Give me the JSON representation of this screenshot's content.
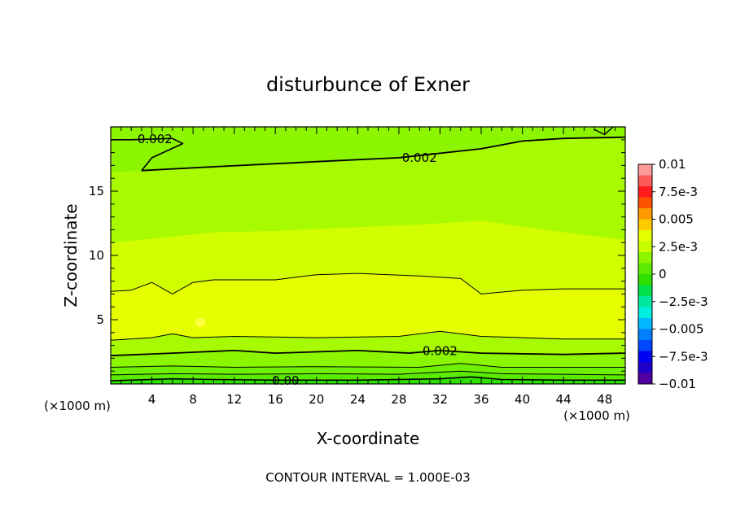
{
  "chart_data": {
    "type": "contour",
    "title": "disturbunce of Exner",
    "xlabel": "X-coordinate",
    "ylabel": "Z-coordinate",
    "x_unit_left": "(×1000 m)",
    "x_unit_right": "(×1000 m)",
    "xlim": [
      0,
      50
    ],
    "ylim": [
      0,
      20
    ],
    "x_ticks": [
      4,
      8,
      12,
      16,
      20,
      24,
      28,
      32,
      36,
      40,
      44,
      48
    ],
    "y_ticks": [
      5,
      10,
      15
    ],
    "contour_interval_text": "CONTOUR INTERVAL = 1.000E-03",
    "contour_labels": [
      "0.002",
      "0.002",
      "0.002",
      "0.00"
    ],
    "colorbar": {
      "labels": [
        "0.01",
        "7.5e-3",
        "0.005",
        "2.5e-3",
        "0",
        "−2.5e-3",
        "−0.005",
        "−7.5e-3",
        "−0.01"
      ],
      "levels": [
        {
          "value": 0.009,
          "color": "#ff9a9a"
        },
        {
          "value": 0.008,
          "color": "#ff5a5a"
        },
        {
          "value": 0.007,
          "color": "#ff1c1c"
        },
        {
          "value": 0.006,
          "color": "#ff5200"
        },
        {
          "value": 0.005,
          "color": "#ff9a00"
        },
        {
          "value": 0.004,
          "color": "#ffcc00"
        },
        {
          "value": 0.003,
          "color": "#e6ff00"
        },
        {
          "value": 0.002,
          "color": "#c8ff00"
        },
        {
          "value": 0.001,
          "color": "#8cf500"
        },
        {
          "value": 0.0005,
          "color": "#5aeb00"
        },
        {
          "value": 0,
          "color": "#2ee000"
        },
        {
          "value": -0.001,
          "color": "#00e04a"
        },
        {
          "value": -0.002,
          "color": "#00e8a0"
        },
        {
          "value": -0.003,
          "color": "#00f0e0"
        },
        {
          "value": -0.004,
          "color": "#00b8ff"
        },
        {
          "value": -0.005,
          "color": "#0080ff"
        },
        {
          "value": -0.006,
          "color": "#0046ff"
        },
        {
          "value": -0.007,
          "color": "#0000f0"
        },
        {
          "value": -0.008,
          "color": "#1e00c8"
        },
        {
          "value": -0.009,
          "color": "#5000a0"
        }
      ]
    },
    "bands": [
      {
        "color": "#2ee000",
        "upper": [
          [
            0,
            0.25
          ],
          [
            6,
            0.4
          ],
          [
            10,
            0.35
          ],
          [
            16,
            0.3
          ],
          [
            24,
            0.3
          ],
          [
            32,
            0.4
          ],
          [
            35,
            0.55
          ],
          [
            38,
            0.35
          ],
          [
            44,
            0.3
          ],
          [
            50,
            0.3
          ]
        ]
      },
      {
        "color": "#5aeb00",
        "upper": [
          [
            0,
            0.7
          ],
          [
            6,
            0.8
          ],
          [
            12,
            0.75
          ],
          [
            20,
            0.8
          ],
          [
            28,
            0.75
          ],
          [
            34,
            1.0
          ],
          [
            38,
            0.8
          ],
          [
            44,
            0.75
          ],
          [
            50,
            0.7
          ]
        ]
      },
      {
        "color": "#6ef000",
        "upper": [
          [
            0,
            1.3
          ],
          [
            6,
            1.4
          ],
          [
            12,
            1.3
          ],
          [
            20,
            1.35
          ],
          [
            30,
            1.3
          ],
          [
            34,
            1.6
          ],
          [
            38,
            1.3
          ],
          [
            50,
            1.3
          ]
        ]
      },
      {
        "color": "#8cf500",
        "upper": [
          [
            0,
            2.2
          ],
          [
            6,
            2.4
          ],
          [
            12,
            2.6
          ],
          [
            16,
            2.4
          ],
          [
            24,
            2.6
          ],
          [
            32,
            2.6
          ],
          [
            36,
            2.4
          ],
          [
            44,
            2.3
          ],
          [
            50,
            2.4
          ]
        ]
      },
      {
        "color": "#a8fa00",
        "upper": [
          [
            0,
            3.4
          ],
          [
            4,
            3.6
          ],
          [
            6,
            3.9
          ],
          [
            8,
            3.6
          ],
          [
            12,
            3.7
          ],
          [
            20,
            3.6
          ],
          [
            28,
            3.7
          ],
          [
            32,
            4.1
          ],
          [
            36,
            3.7
          ],
          [
            44,
            3.5
          ],
          [
            50,
            3.5
          ]
        ]
      },
      {
        "color": "#e6ff00",
        "upper": [
          [
            0,
            7.2
          ],
          [
            2,
            7.3
          ],
          [
            4,
            7.9
          ],
          [
            6,
            7.0
          ],
          [
            8,
            7.9
          ],
          [
            10,
            8.1
          ],
          [
            16,
            8.1
          ],
          [
            20,
            8.5
          ],
          [
            24,
            8.6
          ],
          [
            30,
            8.4
          ],
          [
            34,
            8.2
          ],
          [
            36,
            7.0
          ],
          [
            40,
            7.3
          ],
          [
            44,
            7.4
          ],
          [
            50,
            7.4
          ]
        ]
      },
      {
        "color": "#d2ff00",
        "upper": [
          [
            0,
            11.0
          ],
          [
            4,
            11.3
          ],
          [
            10,
            11.8
          ],
          [
            16,
            11.9
          ],
          [
            24,
            12.2
          ],
          [
            30,
            12.4
          ],
          [
            36,
            12.7
          ],
          [
            42,
            12.0
          ],
          [
            46,
            11.6
          ],
          [
            50,
            11.2
          ]
        ]
      },
      {
        "color": "#a8fa00",
        "upper": [
          [
            0,
            16.5
          ],
          [
            4,
            16.6
          ],
          [
            10,
            16.8
          ],
          [
            20,
            17.2
          ],
          [
            28,
            17.5
          ],
          [
            36,
            18.3
          ],
          [
            40,
            18.9
          ],
          [
            44,
            19.1
          ],
          [
            50,
            19.2
          ]
        ]
      },
      {
        "color": "#8cf500",
        "upper": [
          [
            0,
            20
          ],
          [
            50,
            20
          ]
        ]
      }
    ],
    "contours": [
      {
        "width": 1.6,
        "points": [
          [
            0,
            0.25
          ],
          [
            6,
            0.4
          ],
          [
            10,
            0.35
          ],
          [
            16,
            0.3
          ],
          [
            24,
            0.3
          ],
          [
            32,
            0.4
          ],
          [
            35,
            0.55
          ],
          [
            38,
            0.35
          ],
          [
            44,
            0.3
          ],
          [
            50,
            0.3
          ]
        ]
      },
      {
        "width": 1.0,
        "points": [
          [
            0,
            0.7
          ],
          [
            6,
            0.8
          ],
          [
            12,
            0.75
          ],
          [
            20,
            0.8
          ],
          [
            28,
            0.75
          ],
          [
            34,
            1.0
          ],
          [
            38,
            0.8
          ],
          [
            44,
            0.75
          ],
          [
            50,
            0.7
          ]
        ]
      },
      {
        "width": 1.0,
        "points": [
          [
            0,
            1.3
          ],
          [
            6,
            1.4
          ],
          [
            12,
            1.3
          ],
          [
            20,
            1.35
          ],
          [
            30,
            1.3
          ],
          [
            34,
            1.6
          ],
          [
            38,
            1.3
          ],
          [
            50,
            1.3
          ]
        ]
      },
      {
        "width": 1.8,
        "points": [
          [
            0,
            2.2
          ],
          [
            6,
            2.4
          ],
          [
            12,
            2.6
          ],
          [
            16,
            2.4
          ],
          [
            24,
            2.6
          ],
          [
            29,
            2.4
          ],
          [
            32,
            2.6
          ],
          [
            36,
            2.4
          ],
          [
            44,
            2.3
          ],
          [
            50,
            2.4
          ]
        ]
      },
      {
        "width": 1.0,
        "points": [
          [
            0,
            3.4
          ],
          [
            4,
            3.6
          ],
          [
            6,
            3.9
          ],
          [
            8,
            3.6
          ],
          [
            12,
            3.7
          ],
          [
            20,
            3.6
          ],
          [
            28,
            3.7
          ],
          [
            32,
            4.1
          ],
          [
            36,
            3.7
          ],
          [
            44,
            3.5
          ],
          [
            50,
            3.5
          ]
        ]
      },
      {
        "width": 1.0,
        "points": [
          [
            0,
            7.2
          ],
          [
            2,
            7.3
          ],
          [
            4,
            7.9
          ],
          [
            6,
            7.0
          ],
          [
            8,
            7.9
          ],
          [
            10,
            8.1
          ],
          [
            16,
            8.1
          ],
          [
            20,
            8.5
          ],
          [
            24,
            8.6
          ],
          [
            30,
            8.4
          ],
          [
            34,
            8.2
          ],
          [
            36,
            7.0
          ],
          [
            40,
            7.3
          ],
          [
            44,
            7.4
          ],
          [
            50,
            7.4
          ]
        ]
      },
      {
        "width": 1.8,
        "points": [
          [
            3,
            16.6
          ],
          [
            10,
            16.9
          ],
          [
            20,
            17.3
          ],
          [
            28,
            17.6
          ],
          [
            36,
            18.3
          ],
          [
            40,
            18.9
          ],
          [
            44,
            19.1
          ],
          [
            50,
            19.2
          ]
        ]
      },
      {
        "width": 1.6,
        "points": [
          [
            0,
            19.0
          ],
          [
            2,
            19.0
          ],
          [
            6,
            19.1
          ],
          [
            7,
            18.7
          ],
          [
            4,
            17.6
          ],
          [
            3,
            16.6
          ]
        ]
      },
      {
        "width": 1.4,
        "points": [
          [
            47,
            19.8
          ],
          [
            48,
            19.4
          ],
          [
            48.8,
            20
          ]
        ]
      }
    ],
    "label_positions": [
      {
        "x": 4.3,
        "y": 19.05
      },
      {
        "x": 30.0,
        "y": 17.6
      },
      {
        "x": 32.0,
        "y": 2.55
      },
      {
        "x": 17.0,
        "y": 0.25
      }
    ],
    "max_marker": {
      "x": 8.7,
      "y": 4.8,
      "color": "#ffff40"
    }
  }
}
